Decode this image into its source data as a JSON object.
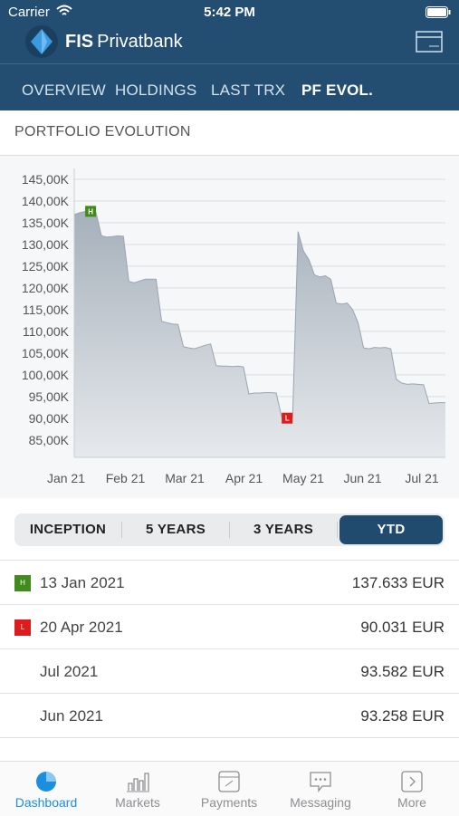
{
  "status": {
    "carrier": "Carrier",
    "time": "5:42 PM"
  },
  "header": {
    "brand_bold": "FIS",
    "brand": "Privatbank"
  },
  "tabs": {
    "items": [
      "OVERVIEW",
      "HOLDINGS",
      "LAST TRX",
      "PF EVOL."
    ],
    "active": 3
  },
  "section_title": "PORTFOLIO EVOLUTION",
  "chart_data": {
    "type": "area",
    "x_labels": [
      "Jan 21",
      "Feb 21",
      "Mar 21",
      "Apr 21",
      "May 21",
      "Jun 21",
      "Jul 21"
    ],
    "values": [
      136900,
      137300,
      137600,
      137633,
      137300,
      132000,
      131700,
      131800,
      132000,
      131900,
      121500,
      121200,
      121600,
      122000,
      122000,
      122000,
      112300,
      112000,
      111700,
      111600,
      106500,
      106200,
      106000,
      106400,
      106800,
      107100,
      102100,
      102000,
      102000,
      101900,
      102000,
      101800,
      95600,
      95800,
      95800,
      95900,
      95900,
      95800,
      90300,
      90031,
      90100,
      133000,
      128500,
      126500,
      123000,
      122500,
      122800,
      122000,
      116500,
      116300,
      116500,
      115000,
      112000,
      106200,
      106000,
      106300,
      106200,
      106300,
      106000,
      99000,
      98100,
      97800,
      97900,
      97800,
      97700,
      93400,
      93500,
      93600,
      93582
    ],
    "color": "#9aa5b1",
    "ylim": [
      81000,
      147500
    ],
    "yticks": [
      {
        "value": 85000,
        "label": "85,00K"
      },
      {
        "value": 90000,
        "label": "90,00K"
      },
      {
        "value": 95000,
        "label": "95,00K"
      },
      {
        "value": 100000,
        "label": "100,00K"
      },
      {
        "value": 105000,
        "label": "105,00K"
      },
      {
        "value": 110000,
        "label": "110,00K"
      },
      {
        "value": 115000,
        "label": "115,00K"
      },
      {
        "value": 120000,
        "label": "120,00K"
      },
      {
        "value": 125000,
        "label": "125,00K"
      },
      {
        "value": 130000,
        "label": "130,00K"
      },
      {
        "value": 135000,
        "label": "135,00K"
      },
      {
        "value": 140000,
        "label": "140,00K"
      },
      {
        "value": 145000,
        "label": "145,00K"
      }
    ],
    "grid": true,
    "markers": {
      "high": {
        "label": "H",
        "color": "#3f8c1c"
      },
      "low": {
        "label": "L",
        "color": "#e01b1b"
      }
    }
  },
  "periods": {
    "items": [
      "INCEPTION",
      "5 YEARS",
      "3 YEARS",
      "YTD"
    ],
    "active": 3
  },
  "table": {
    "rows": [
      {
        "icon": "H",
        "icon_color": "#3f8c1c",
        "date": "13 Jan 2021",
        "amount": "137.633 EUR"
      },
      {
        "icon": "L",
        "icon_color": "#e01b1b",
        "date": "20 Apr 2021",
        "amount": "90.031 EUR"
      },
      {
        "date": "Jul 2021",
        "amount": "93.582 EUR"
      },
      {
        "date": "Jun 2021",
        "amount": "93.258 EUR"
      }
    ]
  },
  "tabbar": {
    "items": [
      "Dashboard",
      "Markets",
      "Payments",
      "Messaging",
      "More"
    ],
    "active": 0
  }
}
